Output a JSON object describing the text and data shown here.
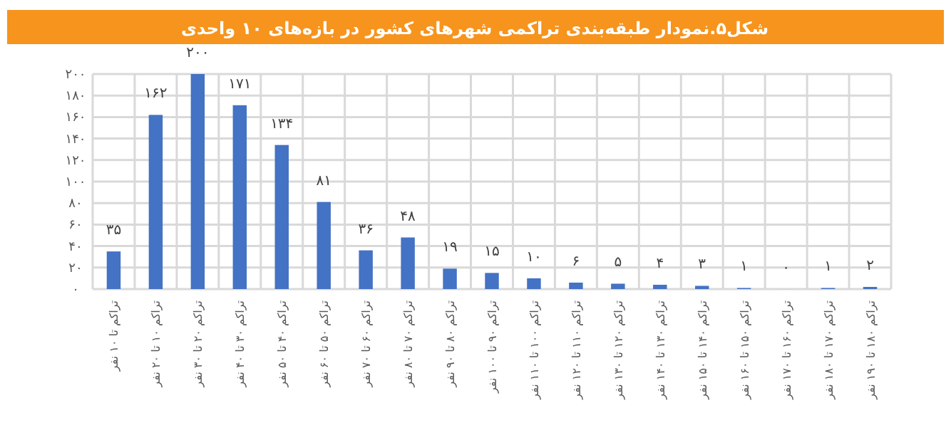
{
  "chart_data": {
    "type": "bar",
    "title": "شکل۵.نمودار طبقه‌بندی تراکمی شهرهای کشور در بازه‌های ۱۰ واحدی",
    "categories": [
      "تراکم تا ۱۰ نفر",
      "تراکم ۱۰ تا ۲۰ نفر",
      "تراکم ۲۰ تا ۳۰ نفر",
      "تراکم ۳۰ تا ۴۰ نفر",
      "تراکم ۴۰ تا ۵۰ نفر",
      "تراکم ۵۰ تا ۶۰ نفر",
      "تراکم ۶۰ تا ۷۰ نفر",
      "تراکم ۷۰ تا ۸۰ نفر",
      "تراکم ۸۰ تا ۹۰ نفر",
      "تراکم ۹۰ تا ۱۰۰ نفر",
      "تراکم ۱۰۰ تا ۱۱۰ نفر",
      "تراکم ۱۱۰ تا ۱۲۰ نفر",
      "تراکم ۱۲۰ تا ۱۳۰ نفر",
      "تراکم ۱۳۰ تا ۱۴۰ نفر",
      "تراکم ۱۴۰ تا ۱۵۰ نفر",
      "تراکم ۱۵۰ تا ۱۶۰ نفر",
      "تراکم ۱۶۰ تا ۱۷۰ نفر",
      "تراکم ۱۷۰ تا ۱۸۰ نفر",
      "تراکم ۱۸۰ تا ۱۹۰ نفر"
    ],
    "values": [
      35,
      162,
      200,
      171,
      134,
      81,
      36,
      48,
      19,
      15,
      10,
      6,
      5,
      4,
      3,
      1,
      0,
      1,
      2
    ],
    "value_labels": [
      "۳۵",
      "۱۶۲",
      "۲۰۰",
      "۱۷۱",
      "۱۳۴",
      "۸۱",
      "۳۶",
      "۴۸",
      "۱۹",
      "۱۵",
      "۱۰",
      "۶",
      "۵",
      "۴",
      "۳",
      "۱",
      "۰",
      "۱",
      "۲"
    ],
    "color": "#4472c4",
    "ylim": [
      0,
      200
    ],
    "yticks": [
      {
        "value": 0,
        "label": "۰"
      },
      {
        "value": 20,
        "label": "۲۰"
      },
      {
        "value": 40,
        "label": "۴۰"
      },
      {
        "value": 60,
        "label": "۶۰"
      },
      {
        "value": 80,
        "label": "۸۰"
      },
      {
        "value": 100,
        "label": "۱۰۰"
      },
      {
        "value": 120,
        "label": "۱۲۰"
      },
      {
        "value": 140,
        "label": "۱۴۰"
      },
      {
        "value": 160,
        "label": "۱۶۰"
      },
      {
        "value": 180,
        "label": "۱۸۰"
      },
      {
        "value": 200,
        "label": "۲۰۰"
      }
    ],
    "grid": true
  }
}
